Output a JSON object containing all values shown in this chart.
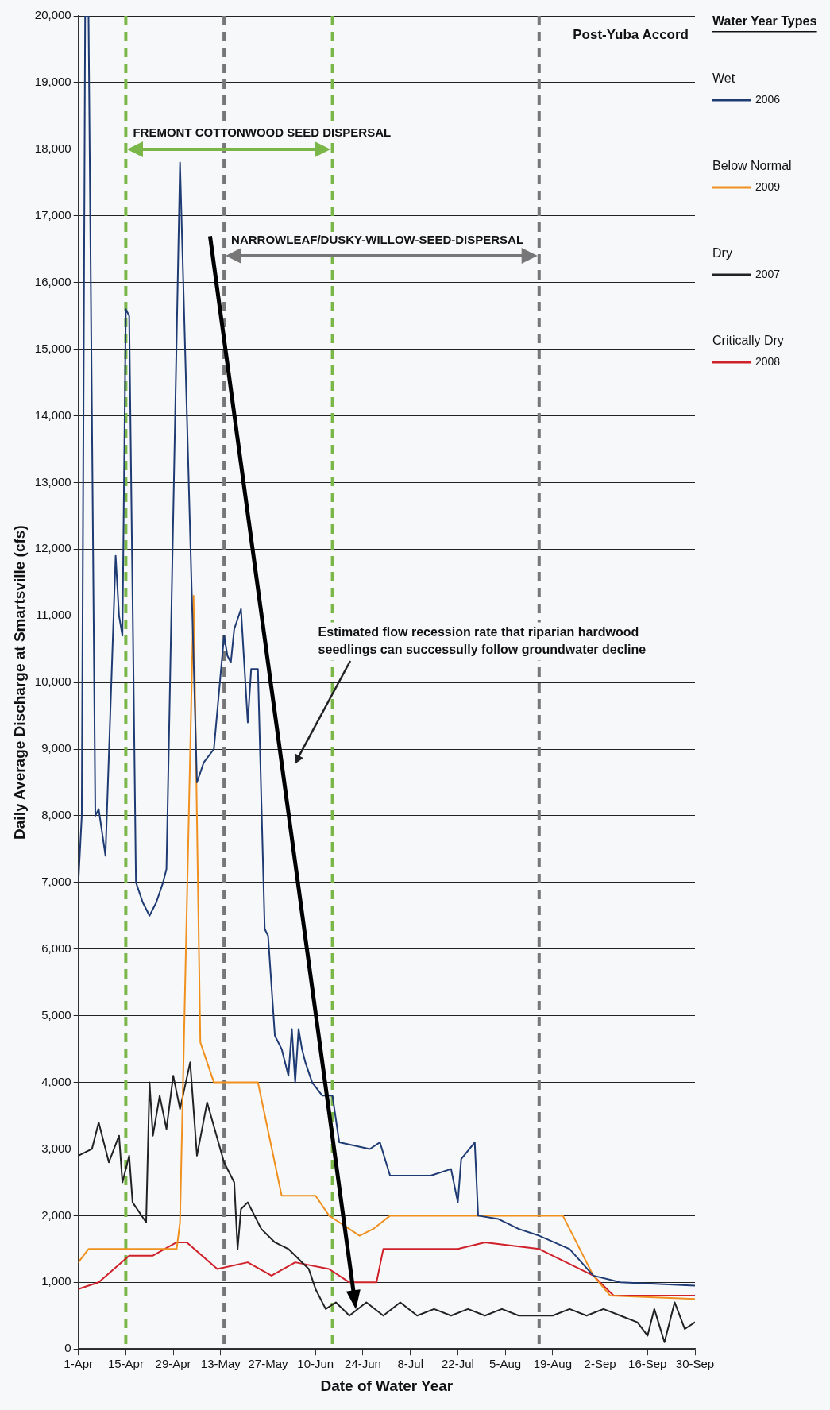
{
  "chart_data": {
    "type": "line",
    "xlabel": "Date of Water Year",
    "ylabel": "Daily Average Discharge at Smartsville (cfs)",
    "legend_title": "Water Year Types",
    "legend": "right",
    "grid": "y",
    "marker": "none",
    "line_style": "solid",
    "xlim": [
      "--04-01",
      "--09-30"
    ],
    "xticks": [
      {
        "value": "--04-01",
        "label": "1-Apr"
      },
      {
        "value": "--04-15",
        "label": "15-Apr"
      },
      {
        "value": "--04-29",
        "label": "29-Apr"
      },
      {
        "value": "--05-13",
        "label": "13-May"
      },
      {
        "value": "--05-27",
        "label": "27-May"
      },
      {
        "value": "--06-10",
        "label": "10-Jun"
      },
      {
        "value": "--06-24",
        "label": "24-Jun"
      },
      {
        "value": "--07-08",
        "label": "8-Jul"
      },
      {
        "value": "--07-22",
        "label": "22-Jul"
      },
      {
        "value": "--08-05",
        "label": "5-Aug"
      },
      {
        "value": "--08-19",
        "label": "19-Aug"
      },
      {
        "value": "--09-02",
        "label": "2-Sep"
      },
      {
        "value": "--09-16",
        "label": "16-Sep"
      },
      {
        "value": "--09-30",
        "label": "30-Sep"
      }
    ],
    "ylim": [
      0,
      20000
    ],
    "yticks": [
      {
        "value": 0,
        "label": "0"
      },
      {
        "value": 1000,
        "label": "1,000"
      },
      {
        "value": 2000,
        "label": "2,000"
      },
      {
        "value": 3000,
        "label": "3,000"
      },
      {
        "value": 4000,
        "label": "4,000"
      },
      {
        "value": 5000,
        "label": "5,000"
      },
      {
        "value": 6000,
        "label": "6,000"
      },
      {
        "value": 7000,
        "label": "7,000"
      },
      {
        "value": 8000,
        "label": "8,000"
      },
      {
        "value": 9000,
        "label": "9,000"
      },
      {
        "value": 10000,
        "label": "10,000"
      },
      {
        "value": 11000,
        "label": "11,000"
      },
      {
        "value": 12000,
        "label": "12,000"
      },
      {
        "value": 13000,
        "label": "13,000"
      },
      {
        "value": 14000,
        "label": "14,000"
      },
      {
        "value": 15000,
        "label": "15,000"
      },
      {
        "value": 16000,
        "label": "16,000"
      },
      {
        "value": 17000,
        "label": "17,000"
      },
      {
        "value": 18000,
        "label": "18,000"
      },
      {
        "value": 19000,
        "label": "19,000"
      },
      {
        "value": 20000,
        "label": "20,000"
      }
    ],
    "series": [
      {
        "name": "2006",
        "color": "#1f3b73",
        "x": [
          "--04-01",
          "--04-02",
          "--04-03",
          "--04-04",
          "--04-06",
          "--04-07",
          "--04-09",
          "--04-12",
          "--04-13",
          "--04-14",
          "--04-15",
          "--04-16",
          "--04-18",
          "--04-20",
          "--04-22",
          "--04-24",
          "--04-26",
          "--04-27",
          "--05-01",
          "--05-06",
          "--05-08",
          "--05-11",
          "--05-14",
          "--05-15",
          "--05-16",
          "--05-17",
          "--05-19",
          "--05-21",
          "--05-22",
          "--05-24",
          "--05-26",
          "--05-27",
          "--05-29",
          "--05-31",
          "--06-02",
          "--06-03",
          "--06-04",
          "--06-05",
          "--06-06",
          "--06-07",
          "--06-09",
          "--06-12",
          "--06-15",
          "--06-17",
          "--06-26",
          "--06-29",
          "--07-02",
          "--07-14",
          "--07-20",
          "--07-22",
          "--07-23",
          "--07-27",
          "--07-28",
          "--08-03",
          "--08-09",
          "--08-15",
          "--08-24",
          "--08-31",
          "--09-08",
          "--09-30"
        ],
        "values": [
          7000,
          8000,
          20000,
          20000,
          8000,
          8100,
          7400,
          11900,
          11000,
          10700,
          15600,
          15500,
          7000,
          6700,
          6500,
          6700,
          7000,
          7200,
          17800,
          8500,
          8800,
          9000,
          10700,
          10400,
          10300,
          10800,
          11100,
          9400,
          10200,
          10200,
          6300,
          6200,
          4700,
          4500,
          4100,
          4800,
          4000,
          4800,
          4500,
          4300,
          4000,
          3800,
          3800,
          3100,
          3000,
          3100,
          2600,
          2600,
          2700,
          2200,
          2850,
          3100,
          2000,
          1950,
          1800,
          1700,
          1500,
          1100,
          1000,
          950
        ]
      },
      {
        "name": "2009",
        "color": "#f0901e",
        "x": [
          "--04-01",
          "--04-04",
          "--04-30",
          "--05-01",
          "--05-05",
          "--05-07",
          "--05-09",
          "--05-11",
          "--05-24",
          "--05-31",
          "--06-10",
          "--06-14",
          "--06-17",
          "--06-23",
          "--06-27",
          "--07-02",
          "--08-15",
          "--08-22",
          "--08-31",
          "--09-05",
          "--09-30"
        ],
        "values": [
          1300,
          1500,
          1500,
          1900,
          11300,
          4600,
          4300,
          4000,
          4000,
          2300,
          2300,
          2000,
          1900,
          1700,
          1800,
          2000,
          2000,
          2000,
          1100,
          800,
          750
        ]
      },
      {
        "name": "2007",
        "color": "#222222",
        "x": [
          "--04-01",
          "--04-05",
          "--04-07",
          "--04-10",
          "--04-13",
          "--04-14",
          "--04-16",
          "--04-17",
          "--04-21",
          "--04-22",
          "--04-23",
          "--04-25",
          "--04-27",
          "--04-29",
          "--05-01",
          "--05-04",
          "--05-06",
          "--05-09",
          "--05-14",
          "--05-17",
          "--05-18",
          "--05-19",
          "--05-21",
          "--05-25",
          "--05-29",
          "--06-02",
          "--06-08",
          "--06-10",
          "--06-13",
          "--06-16",
          "--06-20",
          "--06-25",
          "--06-30",
          "--07-05",
          "--07-10",
          "--07-15",
          "--07-20",
          "--07-25",
          "--07-30",
          "--08-04",
          "--08-09",
          "--08-14",
          "--08-19",
          "--08-24",
          "--08-29",
          "--09-03",
          "--09-08",
          "--09-13",
          "--09-16",
          "--09-18",
          "--09-21",
          "--09-24",
          "--09-27",
          "--09-30"
        ],
        "values": [
          2900,
          3000,
          3400,
          2800,
          3200,
          2500,
          2900,
          2200,
          1900,
          4000,
          3200,
          3800,
          3300,
          4100,
          3600,
          4300,
          2900,
          3700,
          2800,
          2500,
          1500,
          2100,
          2200,
          1800,
          1600,
          1500,
          1200,
          900,
          600,
          700,
          500,
          700,
          500,
          700,
          500,
          600,
          500,
          600,
          500,
          600,
          500,
          500,
          500,
          600,
          500,
          600,
          500,
          400,
          200,
          600,
          100,
          700,
          300,
          400
        ]
      },
      {
        "name": "2008",
        "color": "#d0202a",
        "x": [
          "--04-01",
          "--04-07",
          "--04-16",
          "--04-23",
          "--04-30",
          "--05-03",
          "--05-12",
          "--05-21",
          "--05-28",
          "--06-04",
          "--06-14",
          "--06-20",
          "--06-28",
          "--06-30",
          "--07-22",
          "--07-30",
          "--08-15",
          "--08-31",
          "--09-06",
          "--09-30"
        ],
        "values": [
          900,
          1000,
          1400,
          1400,
          1600,
          1600,
          1200,
          1300,
          1100,
          1300,
          1200,
          1000,
          1000,
          1500,
          1500,
          1600,
          1500,
          1100,
          800,
          800
        ]
      }
    ],
    "ref_lines": [
      {
        "axis": "x",
        "value": "--04-15",
        "color": "#7ab648",
        "line_style": "dashed"
      },
      {
        "axis": "x",
        "value": "--06-15",
        "color": "#7ab648",
        "line_style": "dashed"
      },
      {
        "axis": "x",
        "value": "--05-14",
        "color": "#777777",
        "line_style": "dashed"
      },
      {
        "axis": "x",
        "value": "--08-15",
        "color": "#777777",
        "line_style": "dashed"
      }
    ],
    "annotations": [
      "Post-Yuba Accord",
      "Wet",
      "Below Normal",
      "Dry",
      "Critically Dry",
      "FREMONT COTTONWOOD SEED DISPERSAL",
      "NARROWLEAF/DUSKY-WILLOW-SEED-DISPERSAL",
      "Estimated flow recession rate that riparian hardwood\nseedlings can successully follow groundwater decline"
    ]
  }
}
